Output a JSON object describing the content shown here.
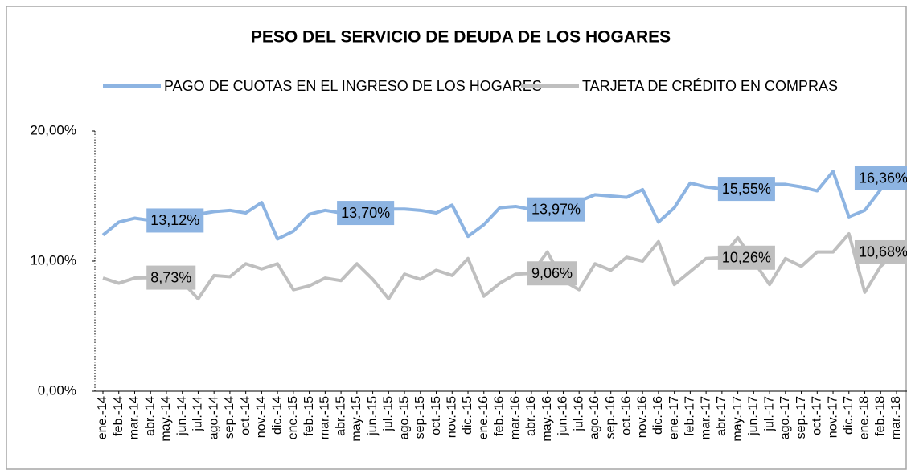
{
  "chart_data": {
    "type": "line",
    "title": "PESO DEL SERVICIO DE DEUDA DE LOS HOGARES",
    "categories": [
      "ene.-14",
      "feb.-14",
      "mar.-14",
      "abr.-14",
      "may.-14",
      "jun.-14",
      "jul.-14",
      "ago.-14",
      "sep.-14",
      "oct.-14",
      "nov.-14",
      "dic.-14",
      "ene.-15",
      "feb.-15",
      "mar.-15",
      "abr.-15",
      "may.-15",
      "jun.-15",
      "jul.-15",
      "ago.-15",
      "sep.-15",
      "oct.-15",
      "nov.-15",
      "dic.-15",
      "ene.-16",
      "feb.-16",
      "mar.-16",
      "abr.-16",
      "may.-16",
      "jun.-16",
      "jul.-16",
      "ago.-16",
      "sep.-16",
      "oct.-16",
      "nov.-16",
      "dic.-16",
      "ene.-17",
      "feb.-17",
      "mar.-17",
      "abr.-17",
      "may.-17",
      "jun.-17",
      "jul.-17",
      "ago.-17",
      "sep.-17",
      "oct.-17",
      "nov.-17",
      "dic.-17",
      "ene.-18",
      "feb.-18",
      "mar.-18"
    ],
    "series": [
      {
        "name": "PAGO DE CUOTAS EN EL INGRESO DE LOS HOGARES",
        "color": "#8db4e2",
        "values": [
          12.0,
          13.0,
          13.3,
          13.12,
          13.3,
          13.5,
          13.6,
          13.8,
          13.9,
          13.7,
          14.5,
          11.7,
          12.3,
          13.6,
          13.9,
          13.7,
          13.8,
          13.9,
          14.0,
          14.0,
          13.9,
          13.7,
          14.3,
          11.9,
          12.8,
          14.1,
          14.2,
          13.97,
          14.1,
          14.3,
          14.6,
          15.1,
          15.0,
          14.9,
          15.5,
          13.0,
          14.1,
          16.0,
          15.7,
          15.55,
          15.6,
          15.8,
          15.9,
          15.9,
          15.7,
          15.4,
          16.9,
          13.4,
          13.9,
          15.5,
          16.36
        ],
        "value_labels": [
          null,
          null,
          null,
          "13,12%",
          null,
          null,
          null,
          null,
          null,
          null,
          null,
          null,
          null,
          null,
          null,
          "13,70%",
          null,
          null,
          null,
          null,
          null,
          null,
          null,
          null,
          null,
          null,
          null,
          "13,97%",
          null,
          null,
          null,
          null,
          null,
          null,
          null,
          null,
          null,
          null,
          null,
          "15,55%",
          null,
          null,
          null,
          null,
          null,
          null,
          null,
          null,
          null,
          null,
          "16,36%"
        ]
      },
      {
        "name": "TARJETA DE CRÉDITO EN COMPRAS",
        "color": "#bfbfbf",
        "values": [
          8.7,
          8.3,
          8.7,
          8.73,
          8.6,
          8.4,
          7.1,
          8.9,
          8.8,
          9.8,
          9.4,
          9.8,
          7.8,
          8.1,
          8.7,
          8.5,
          9.8,
          8.6,
          7.1,
          9.0,
          8.6,
          9.3,
          8.9,
          10.2,
          7.3,
          8.3,
          9.0,
          9.06,
          10.7,
          8.5,
          7.8,
          9.8,
          9.3,
          10.3,
          10.0,
          11.5,
          8.2,
          9.2,
          10.2,
          10.26,
          11.8,
          10.0,
          8.2,
          10.2,
          9.6,
          10.7,
          10.7,
          12.1,
          7.6,
          9.6,
          10.68
        ],
        "value_labels": [
          null,
          null,
          null,
          "8,73%",
          null,
          null,
          null,
          null,
          null,
          null,
          null,
          null,
          null,
          null,
          null,
          null,
          null,
          null,
          null,
          null,
          null,
          null,
          null,
          null,
          null,
          null,
          null,
          "9,06%",
          null,
          null,
          null,
          null,
          null,
          null,
          null,
          null,
          null,
          null,
          null,
          "10,26%",
          null,
          null,
          null,
          null,
          null,
          null,
          null,
          null,
          null,
          null,
          "10,68%"
        ]
      }
    ],
    "ylim": [
      0,
      20
    ],
    "yticks": [
      {
        "value": 0,
        "label": "0,00%"
      },
      {
        "value": 10,
        "label": "10,00%"
      },
      {
        "value": 20,
        "label": "20,00%"
      }
    ],
    "grid": false,
    "legend": "top"
  }
}
